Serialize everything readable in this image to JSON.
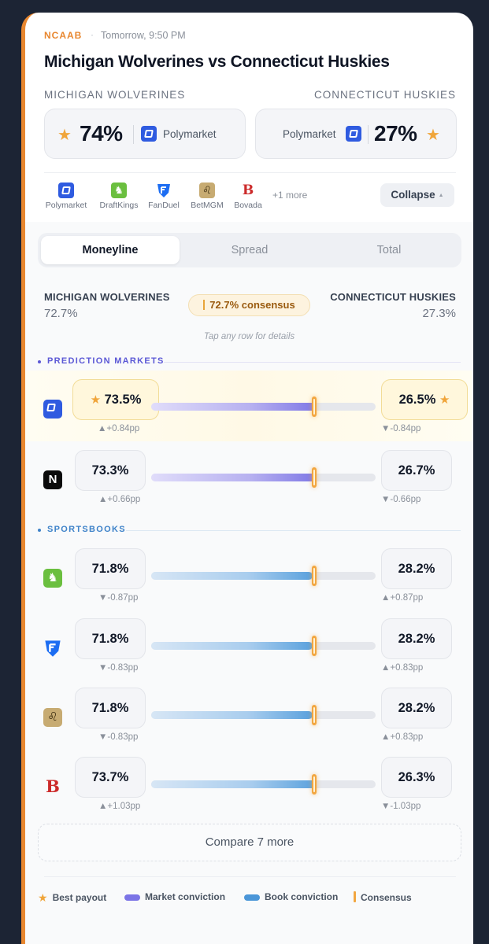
{
  "header": {
    "league": "NCAAB",
    "separator": "·",
    "time": "Tomorrow, 9:50 PM",
    "title": "Michigan Wolverines vs Connecticut Huskies"
  },
  "teams": {
    "home": "MICHIGAN WOLVERINES",
    "away": "CONNECTICUT HUSKIES"
  },
  "best_odds": {
    "home": {
      "pct": "74%",
      "source": "Polymarket"
    },
    "away": {
      "pct": "27%",
      "source": "Polymarket"
    }
  },
  "books_strip": {
    "items": [
      {
        "label": "Polymarket",
        "icon": "polymarket-icon",
        "color": "#2f5be0"
      },
      {
        "label": "DraftKings",
        "icon": "draftkings-icon",
        "color": "#6bbf3f"
      },
      {
        "label": "FanDuel",
        "icon": "fanduel-icon",
        "color": "#1c6df2"
      },
      {
        "label": "BetMGM",
        "icon": "betmgm-icon",
        "color": "#b89a5e"
      },
      {
        "label": "Bovada",
        "icon": "bovada-icon",
        "color": "#cc2a2a"
      }
    ],
    "more": "+1 more",
    "collapse": "Collapse"
  },
  "tabs": [
    "Moneyline",
    "Spread",
    "Total"
  ],
  "moneyline": {
    "home_name": "MICHIGAN WOLVERINES",
    "home_pct": "72.7%",
    "away_name": "CONNECTICUT HUSKIES",
    "away_pct": "27.3%",
    "consensus": "72.7% consensus",
    "consensus_value": 0.727,
    "hint": "Tap any row for details"
  },
  "sections": {
    "prediction": "PREDICTION MARKETS",
    "sportsbooks": "SPORTSBOOKS"
  },
  "rows": [
    {
      "source": "Polymarket",
      "icon": "polymarket-icon",
      "home": "73.5%",
      "away": "26.5%",
      "home_delta": "▲+0.84pp",
      "away_delta": "▼-0.84pp",
      "value": 0.735,
      "best": true
    },
    {
      "source": "Novig",
      "icon": "novig-icon",
      "home": "73.3%",
      "away": "26.7%",
      "home_delta": "▲+0.66pp",
      "away_delta": "▼-0.66pp",
      "value": 0.733,
      "best": false
    },
    {
      "source": "DraftKings",
      "icon": "draftkings-icon",
      "home": "71.8%",
      "away": "28.2%",
      "home_delta": "▼-0.87pp",
      "away_delta": "▲+0.87pp",
      "value": 0.718,
      "best": false
    },
    {
      "source": "FanDuel",
      "icon": "fanduel-icon",
      "home": "71.8%",
      "away": "28.2%",
      "home_delta": "▼-0.83pp",
      "away_delta": "▲+0.83pp",
      "value": 0.718,
      "best": false
    },
    {
      "source": "BetMGM",
      "icon": "betmgm-icon",
      "home": "71.8%",
      "away": "28.2%",
      "home_delta": "▼-0.83pp",
      "away_delta": "▲+0.83pp",
      "value": 0.718,
      "best": false
    },
    {
      "source": "Bovada",
      "icon": "bovada-icon",
      "home": "73.7%",
      "away": "26.3%",
      "home_delta": "▲+1.03pp",
      "away_delta": "▼-1.03pp",
      "value": 0.737,
      "best": false
    }
  ],
  "compare": "Compare 7 more",
  "legend": {
    "best": "Best payout",
    "market": "Market conviction",
    "book": "Book conviction",
    "consensus": "Consensus"
  },
  "colors": {
    "accent": "#e8872f",
    "star": "#f0a53a",
    "market_fill": "#8b85e8",
    "book_fill": "#7fb6e6",
    "consensus": "#f2a640"
  }
}
